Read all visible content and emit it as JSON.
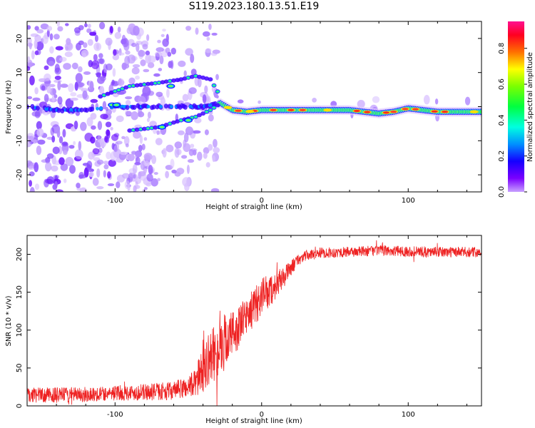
{
  "title": "S119.2023.180.13.51.E19",
  "colors": {
    "snr_line": "#ee2222",
    "axis": "#000000"
  },
  "colorbar": {
    "label": "Normalized spectral amplitude",
    "ticks": [
      "0.0",
      "0.2",
      "0.4",
      "0.6",
      "0.8"
    ],
    "tick_values": [
      0.0,
      0.2,
      0.4,
      0.6,
      0.8
    ],
    "range": [
      0,
      0.95
    ],
    "colormap": "gist_rainbow-like (purple→blue→cyan→green→yellow→red→pink)"
  },
  "chart_data": [
    {
      "type": "heatmap",
      "title": "",
      "xlabel": "Height of straight line (km)",
      "ylabel": "Frequency (Hz)",
      "xlim": [
        -160,
        150
      ],
      "ylim": [
        -25,
        25
      ],
      "x_ticks": [
        -100,
        0,
        100
      ],
      "x_tick_labels": [
        "-100",
        "0",
        "100"
      ],
      "y_ticks": [
        -20,
        -10,
        0,
        10,
        20
      ],
      "y_tick_labels": [
        "-20",
        "-10",
        "0",
        "10",
        "20"
      ],
      "ridge_main": [
        [
          -160,
          0
        ],
        [
          -140,
          -1
        ],
        [
          -120,
          -1
        ],
        [
          -100,
          0
        ],
        [
          -80,
          0
        ],
        [
          -60,
          0
        ],
        [
          -40,
          0
        ],
        [
          -28,
          1
        ],
        [
          -20,
          -1
        ],
        [
          -10,
          -1.5
        ],
        [
          0,
          -1
        ],
        [
          20,
          -1
        ],
        [
          40,
          -1
        ],
        [
          60,
          -1
        ],
        [
          80,
          -2
        ],
        [
          90,
          -1.5
        ],
        [
          100,
          -0.5
        ],
        [
          120,
          -1.5
        ],
        [
          148,
          -1.5
        ]
      ],
      "ridge_upper": [
        [
          -110,
          3
        ],
        [
          -90,
          6
        ],
        [
          -70,
          7
        ],
        [
          -55,
          8
        ],
        [
          -45,
          9
        ],
        [
          -35,
          8
        ],
        [
          -28,
          3
        ]
      ],
      "ridge_lower": [
        [
          -90,
          -7
        ],
        [
          -70,
          -6
        ],
        [
          -55,
          -4
        ],
        [
          -45,
          -3
        ],
        [
          -35,
          -1
        ],
        [
          -28,
          1
        ]
      ]
    },
    {
      "type": "line",
      "title": "",
      "xlabel": "Height of straight line (km)",
      "ylabel": "SNR (10 * v/v)",
      "xlim": [
        -160,
        150
      ],
      "ylim": [
        0,
        225
      ],
      "x_ticks": [
        -100,
        0,
        100
      ],
      "x_tick_labels": [
        "-100",
        "0",
        "100"
      ],
      "y_ticks": [
        0,
        50,
        100,
        150,
        200
      ],
      "y_tick_labels": [
        "0",
        "50",
        "100",
        "150",
        "200"
      ],
      "series": [
        {
          "envelope_x": [
            -160,
            -120,
            -100,
            -80,
            -60,
            -50,
            -45,
            -40,
            -35,
            -30,
            -25,
            -20,
            -15,
            -10,
            -5,
            0,
            5,
            10,
            15,
            20,
            25,
            30,
            40,
            60,
            80,
            100,
            120,
            150
          ],
          "envelope_y": [
            14,
            15,
            17,
            18,
            20,
            25,
            32,
            48,
            65,
            72,
            85,
            95,
            105,
            120,
            130,
            145,
            150,
            160,
            170,
            182,
            193,
            198,
            202,
            203,
            205,
            204,
            203,
            203
          ],
          "noise": [
            10,
            10,
            10,
            11,
            12,
            15,
            20,
            30,
            35,
            38,
            38,
            32,
            28,
            25,
            25,
            25,
            22,
            18,
            14,
            10,
            8,
            7,
            7,
            7,
            7,
            7,
            7,
            7
          ]
        }
      ]
    }
  ]
}
